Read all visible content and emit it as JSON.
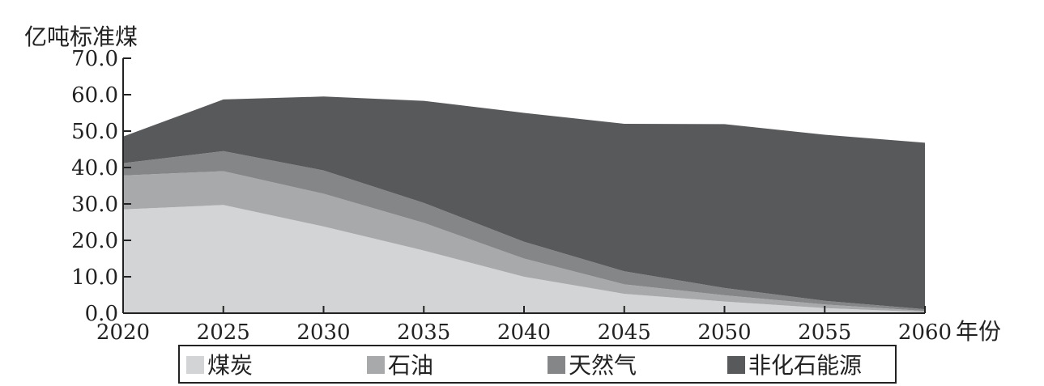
{
  "chart_data": {
    "type": "area",
    "stacked": true,
    "title": "",
    "ylabel": "亿吨标准煤",
    "xlabel": "年份",
    "ylim": [
      0,
      70
    ],
    "yticks": [
      "0.0",
      "10.0",
      "20.0",
      "30.0",
      "40.0",
      "50.0",
      "60.0",
      "70.0"
    ],
    "x": [
      "2020",
      "2025",
      "2030",
      "2035",
      "2040",
      "2045",
      "2050",
      "2055",
      "2060"
    ],
    "series": [
      {
        "name": "煤炭",
        "color": "#d3d4d5",
        "values": [
          28.5,
          29.7,
          23.8,
          17.2,
          10.0,
          5.3,
          3.2,
          1.4,
          0.3
        ]
      },
      {
        "name": "石油",
        "color": "#a8a9ab",
        "values": [
          9.3,
          9.3,
          9.0,
          7.6,
          5.0,
          2.6,
          1.7,
          1.0,
          0.3
        ]
      },
      {
        "name": "天然气",
        "color": "#858688",
        "values": [
          3.4,
          5.5,
          6.4,
          5.5,
          4.6,
          3.6,
          2.0,
          1.0,
          0.5
        ]
      },
      {
        "name": "非化石能源",
        "color": "#58595b",
        "values": [
          7.3,
          14.2,
          20.3,
          28.0,
          35.4,
          40.5,
          45.0,
          45.6,
          45.7
        ]
      }
    ],
    "legend_position": "bottom"
  }
}
